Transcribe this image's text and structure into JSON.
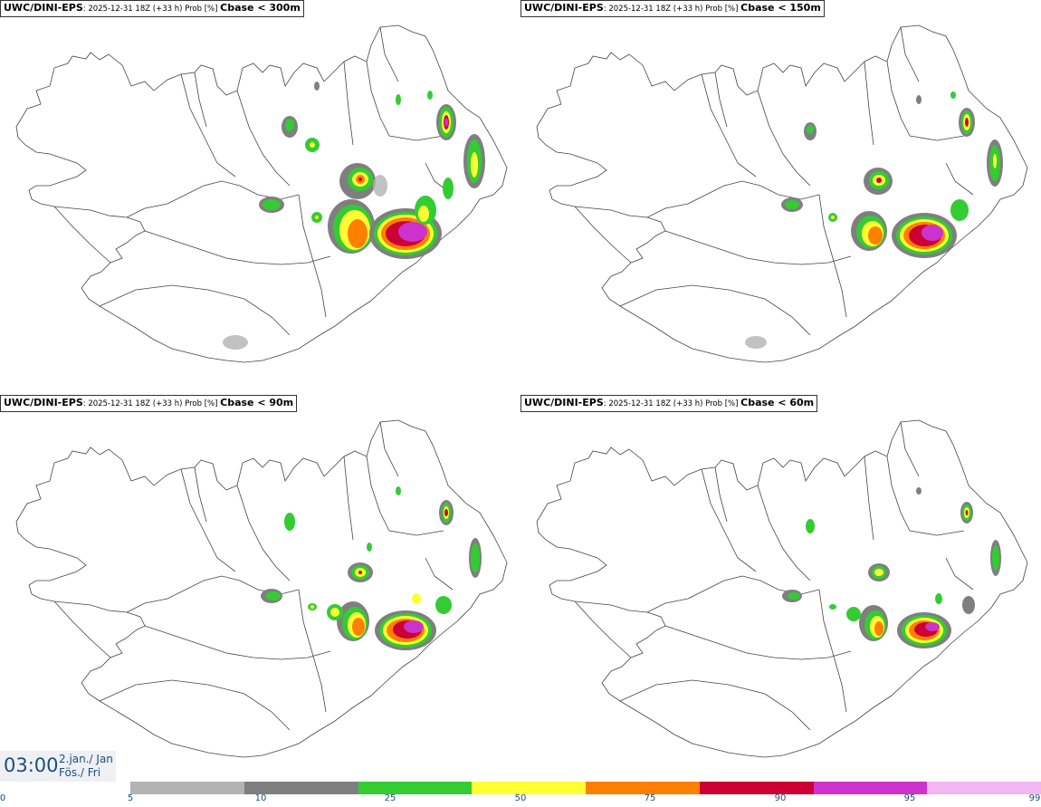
{
  "panels": [
    {
      "model": "UWC/DINI-EPS",
      "meta": ": 2025-12-31 18Z (+33 h) Prob [%] ",
      "variable": "Cbase < 300m"
    },
    {
      "model": "UWC/DINI-EPS",
      "meta": ": 2025-12-31 18Z (+33 h) Prob [%] ",
      "variable": "Cbase < 150m"
    },
    {
      "model": "UWC/DINI-EPS",
      "meta": ": 2025-12-31 18Z (+33 h) Prob [%] ",
      "variable": "Cbase < 90m"
    },
    {
      "model": "UWC/DINI-EPS",
      "meta": ": 2025-12-31 18Z (+33 h) Prob [%] ",
      "variable": "Cbase < 60m"
    }
  ],
  "valid_time": {
    "time": "03:00",
    "date": "2.jan./ Jan",
    "day": "Fös./ Fri"
  },
  "legend": {
    "ticks": [
      "0",
      "5",
      "10",
      "25",
      "50",
      "75",
      "90",
      "95",
      "99"
    ],
    "colors": [
      "#b3b3b3",
      "#7f7f7f",
      "#33cc33",
      "#ffff33",
      "#ff7f00",
      "#cc0033",
      "#cc33cc",
      "#f2b6f2"
    ]
  }
}
